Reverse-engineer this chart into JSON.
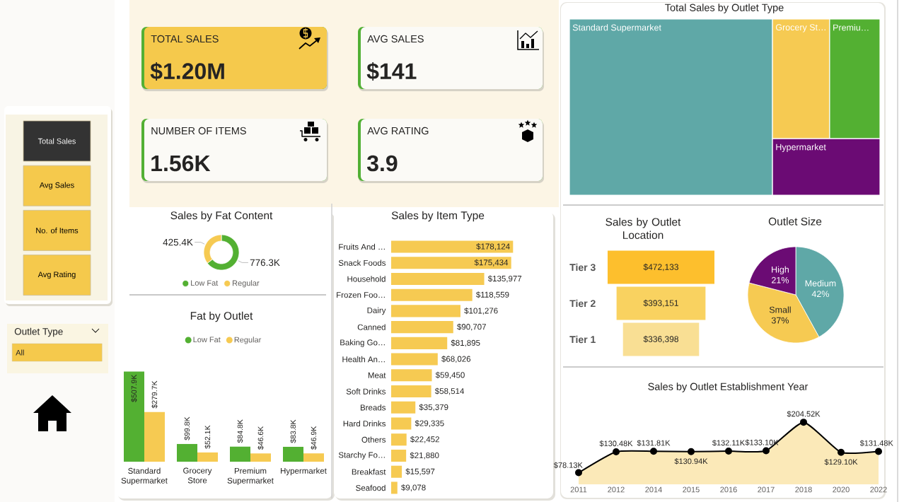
{
  "chart_data": [
    {
      "type": "other",
      "annotations": [
        "Total Sales",
        "Avg Sales",
        "No. of Items",
        "Avg Rating",
        "Outlet Type",
        "All"
      ]
    },
    {
      "type": "other",
      "annotations": [
        "TOTAL SALES",
        "$1.20M",
        "AVG SALES",
        "$141",
        "NUMBER OF ITEMS",
        "1.56K",
        "AVG RATING",
        "3.9"
      ]
    },
    {
      "type": "other",
      "title": "Total Sales by Outlet Type",
      "categories": [
        "Standard Supermarket",
        "Grocery St…",
        "Premiu…",
        "Hypermarket"
      ],
      "colors": [
        "#5fa8a7",
        "#f6ca52",
        "#53b032",
        "#6b0b74"
      ]
    },
    {
      "type": "donut",
      "title": "Sales by Fat Content",
      "categories": [
        "Low Fat",
        "Regular"
      ],
      "values": [
        776.3,
        425.4
      ],
      "value_labels": [
        "776.3K",
        "425.4K"
      ],
      "colors": [
        "#53b032",
        "#f6ca52"
      ],
      "legend": "bottom"
    },
    {
      "type": "bar",
      "title": "Fat by Outlet",
      "categories": [
        "Standard Supermarket",
        "Grocery Store",
        "Premium Supermarket",
        "Hypermarket"
      ],
      "series": [
        {
          "name": "Low Fat",
          "color": "#53b032",
          "values": [
            507.9,
            99.8,
            84.8,
            83.8
          ],
          "value_labels": [
            "$507.9K",
            "$99.8K",
            "$84.8K",
            "$83.8K"
          ]
        },
        {
          "name": "Regular",
          "color": "#f6ca52",
          "values": [
            279.7,
            52.1,
            46.6,
            46.9
          ],
          "value_labels": [
            "$279.7K",
            "$52.1K",
            "$46.6K",
            "$46.9K"
          ]
        }
      ],
      "legend": "top"
    },
    {
      "type": "bar",
      "orientation": "horizontal",
      "title": "Sales by Item Type",
      "categories": [
        "Fruits And …",
        "Snack Foods",
        "Household",
        "Frozen Foo…",
        "Dairy",
        "Canned",
        "Baking Go…",
        "Health An…",
        "Meat",
        "Soft Drinks",
        "Breads",
        "Hard Drinks",
        "Others",
        "Starchy Fo…",
        "Breakfast",
        "Seafood"
      ],
      "values": [
        178124,
        175434,
        135977,
        118559,
        101276,
        90707,
        81895,
        68026,
        59450,
        58514,
        35379,
        29335,
        22452,
        21880,
        15597,
        9078
      ],
      "value_labels": [
        "$178,124",
        "$175,434",
        "$135,977",
        "$118,559",
        "$101,276",
        "$90,707",
        "$81,895",
        "$68,026",
        "$59,450",
        "$58,514",
        "$35,379",
        "$29,335",
        "$22,452",
        "$21,880",
        "$15,597",
        "$9,078"
      ],
      "color": "#f6ca52"
    },
    {
      "type": "other",
      "title": "Sales by Outlet Location",
      "categories": [
        "Tier 3",
        "Tier 2",
        "Tier 1"
      ],
      "values": [
        472133,
        393151,
        336398
      ],
      "value_labels": [
        "$472,133",
        "$393,151",
        "$336,398"
      ],
      "colors": [
        "#fdbf2d",
        "#f9d260",
        "#f9df94"
      ]
    },
    {
      "type": "pie",
      "title": "Outlet Size",
      "categories": [
        "Medium",
        "Small",
        "High"
      ],
      "values": [
        42,
        37,
        21
      ],
      "value_labels": [
        "42%",
        "37%",
        "21%"
      ],
      "colors": [
        "#5fa8a7",
        "#f6ca52",
        "#6b0b74"
      ]
    },
    {
      "type": "area",
      "title": "Sales by Outlet Establishment Year",
      "categories": [
        "2011",
        "2012",
        "2014",
        "2015",
        "2016",
        "2017",
        "2018",
        "2020",
        "2022"
      ],
      "values": [
        78.13,
        130.48,
        131.81,
        130.94,
        132.11,
        133.1,
        204.52,
        129.1,
        131.48
      ],
      "value_labels": [
        "$78.13K",
        "$130.48K",
        "$131.81K",
        "$130.94K",
        "$132.11K",
        "$133.10K",
        "$204.52K",
        "$129.10K",
        "$131.48K"
      ],
      "color": "#fbe9b8",
      "marker": "circle"
    }
  ]
}
